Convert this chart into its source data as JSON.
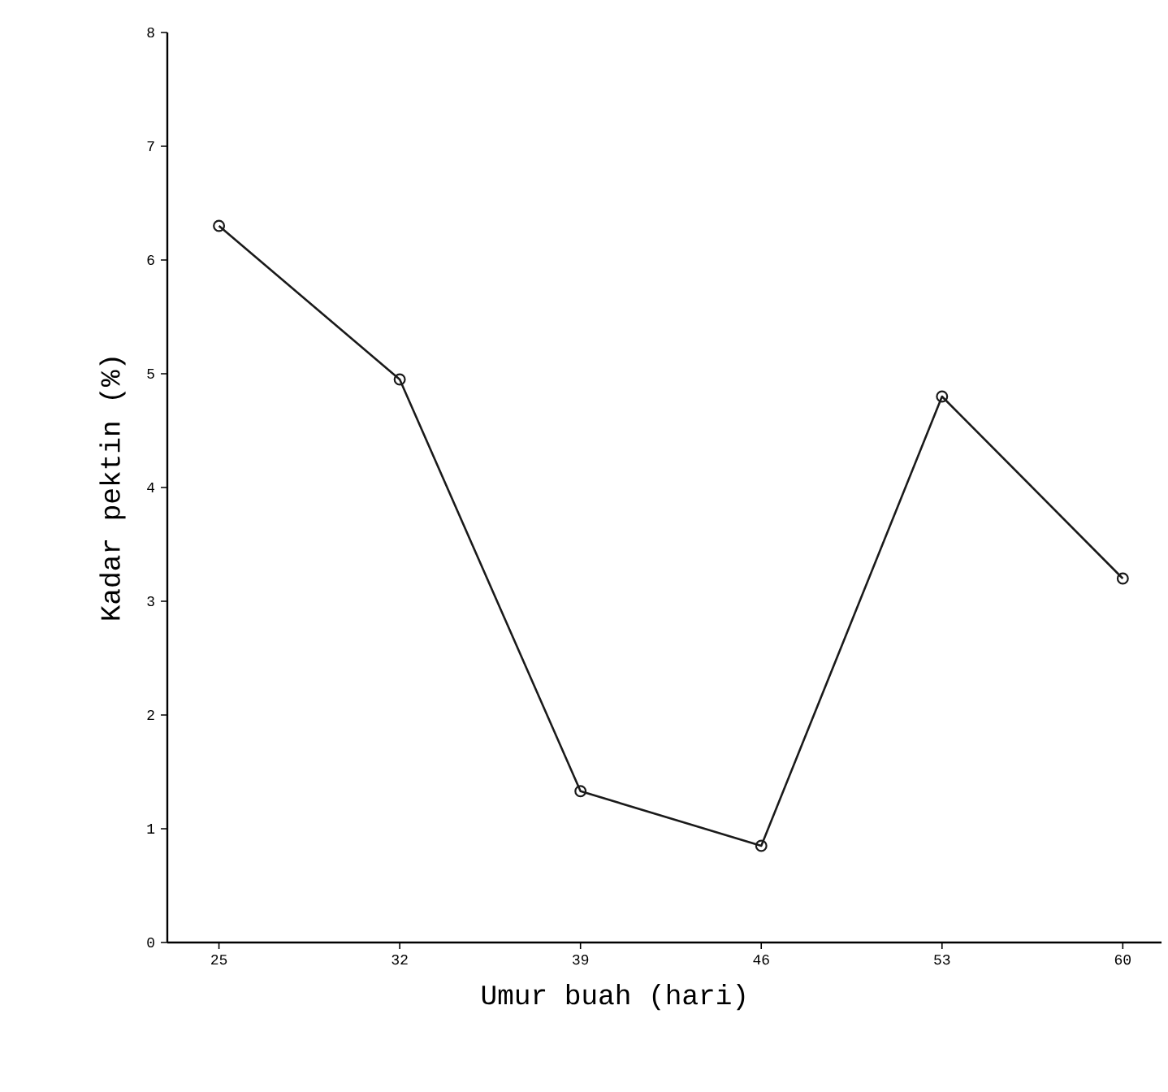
{
  "chart_data": {
    "type": "line",
    "xlabel": "Umur buah (hari)",
    "ylabel": "Kadar pektin (%)",
    "x": [
      25,
      32,
      39,
      46,
      53,
      60
    ],
    "series": [
      {
        "color": "#1a1a1a",
        "values": [
          6.3,
          4.95,
          1.33,
          0.85,
          4.8,
          3.2
        ]
      }
    ],
    "xlim": [
      23,
      61.5
    ],
    "ylim": [
      0,
      8
    ],
    "xticks": [
      25,
      32,
      39,
      46,
      53,
      60
    ],
    "yticks": [
      0,
      1,
      2,
      3,
      4,
      5,
      6,
      7,
      8
    ],
    "marker": "circle",
    "line_style": "solid"
  }
}
